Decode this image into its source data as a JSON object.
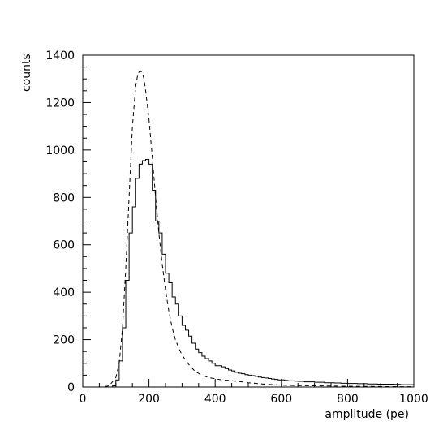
{
  "chart_data": {
    "type": "line",
    "title": "",
    "xlabel": "amplitude (pe)",
    "ylabel": "counts",
    "xlim": [
      0,
      1000
    ],
    "ylim": [
      0,
      1400
    ],
    "x_ticks": [
      0,
      200,
      400,
      600,
      800,
      1000
    ],
    "y_ticks": [
      0,
      200,
      400,
      600,
      800,
      1000,
      1200,
      1400
    ],
    "grid": false,
    "legend": "none",
    "series": [
      {
        "style": "solid-histogram",
        "bin_width": 10,
        "x": [
          90,
          100,
          110,
          120,
          130,
          140,
          150,
          160,
          170,
          180,
          190,
          200,
          210,
          220,
          230,
          240,
          250,
          260,
          270,
          280,
          290,
          300,
          310,
          320,
          330,
          340,
          350,
          360,
          370,
          380,
          390,
          400,
          410,
          420,
          430,
          440,
          450,
          460,
          470,
          480,
          490,
          500,
          510,
          520,
          530,
          540,
          550,
          560,
          570,
          580,
          590,
          600,
          610,
          620,
          630,
          640,
          650,
          660,
          670,
          680,
          690,
          700,
          710,
          720,
          730,
          740,
          750,
          760,
          770,
          780,
          790,
          800,
          810,
          820,
          830,
          840,
          850,
          860,
          870,
          880,
          890,
          900,
          910,
          920,
          930,
          940,
          950,
          960,
          970,
          980,
          990
        ],
        "values": [
          5,
          30,
          110,
          250,
          450,
          650,
          760,
          880,
          940,
          955,
          960,
          940,
          830,
          700,
          650,
          560,
          480,
          440,
          380,
          350,
          300,
          260,
          240,
          215,
          185,
          160,
          145,
          130,
          120,
          110,
          100,
          90,
          90,
          85,
          78,
          72,
          68,
          62,
          58,
          56,
          52,
          50,
          48,
          45,
          42,
          40,
          38,
          36,
          34,
          32,
          30,
          30,
          28,
          26,
          26,
          25,
          24,
          24,
          22,
          22,
          22,
          20,
          20,
          20,
          18,
          18,
          18,
          17,
          17,
          16,
          16,
          15,
          15,
          15,
          14,
          14,
          14,
          13,
          13,
          13,
          12,
          12,
          12,
          12,
          12,
          11,
          11,
          10,
          10,
          10,
          10
        ]
      },
      {
        "style": "dashed-curve",
        "x": [
          0,
          60,
          80,
          100,
          110,
          120,
          130,
          140,
          150,
          160,
          165,
          170,
          175,
          180,
          185,
          190,
          200,
          210,
          220,
          230,
          240,
          250,
          260,
          270,
          280,
          290,
          300,
          320,
          340,
          360,
          380,
          400,
          420,
          440,
          460,
          480,
          500,
          550,
          600,
          650,
          700,
          800,
          900,
          1000
        ],
        "values": [
          0,
          0,
          5,
          40,
          100,
          250,
          500,
          800,
          1100,
          1270,
          1310,
          1330,
          1332,
          1325,
          1300,
          1250,
          1130,
          970,
          800,
          650,
          520,
          410,
          320,
          250,
          200,
          165,
          135,
          95,
          65,
          50,
          40,
          35,
          30,
          28,
          25,
          22,
          18,
          12,
          8,
          6,
          5,
          3,
          2,
          1
        ]
      }
    ]
  }
}
